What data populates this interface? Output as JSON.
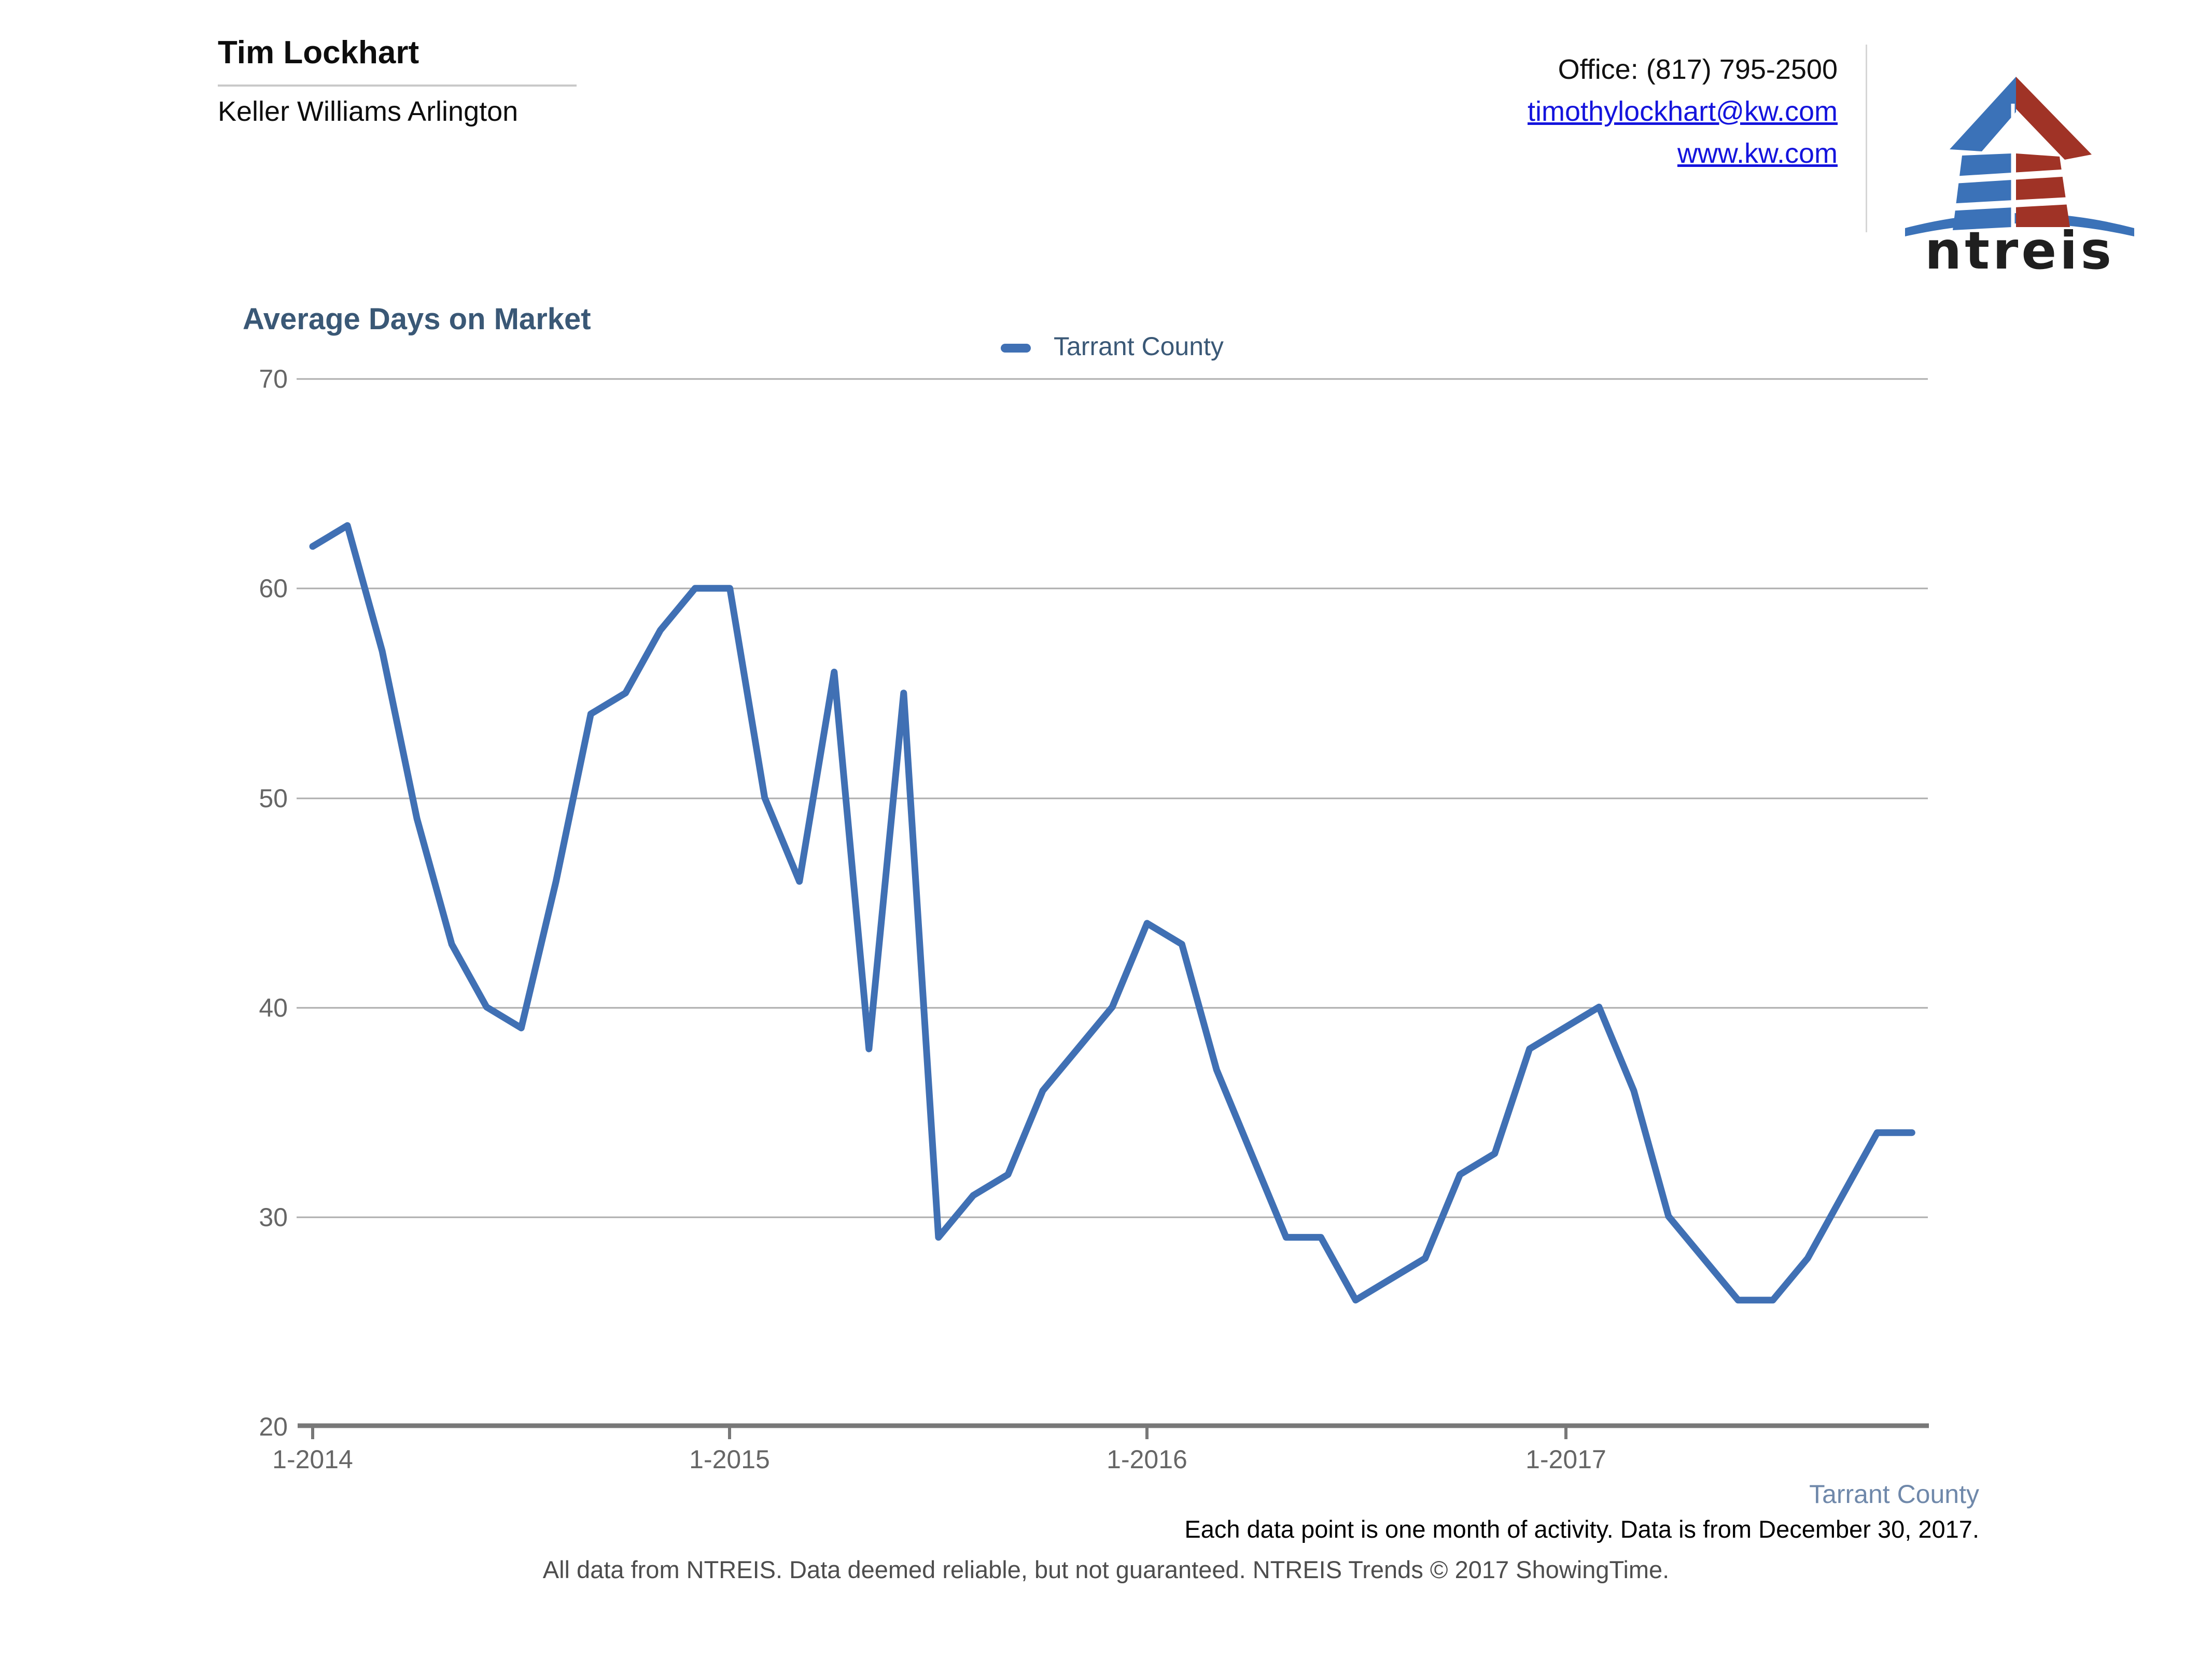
{
  "header": {
    "agent_name": "Tim Lockhart",
    "office_name": "Keller Williams Arlington",
    "phone": "Office: (817) 795-2500",
    "email": "timothylockhart@kw.com",
    "website": "www.kw.com",
    "logo_text": "ntreis"
  },
  "chart": {
    "title": "Average Days on Market",
    "legend_label": "Tarrant County",
    "y_ticks": [
      "70",
      "60",
      "50",
      "40",
      "30",
      "20"
    ],
    "x_ticks": [
      "1-2014",
      "1-2015",
      "1-2016",
      "1-2017"
    ]
  },
  "footer": {
    "series_label": "Tarrant County",
    "note": "Each data point is one month of activity. Data is from December 30, 2017.",
    "disclaimer": "All data from NTREIS. Data deemed reliable, but not guaranteed. NTREIS Trends © 2017 ShowingTime."
  },
  "colors": {
    "series_line": "#4070b4",
    "title_text": "#3a5876",
    "footer_series_label": "#6f88aa",
    "link": "#1414dd",
    "gridline": "#adadad",
    "axis": "#787878",
    "tick_label": "#666666",
    "logo_blue": "#3b72b8",
    "logo_red": "#a03326"
  },
  "chart_data": {
    "type": "line",
    "title": "Average Days on Market",
    "xlabel": "",
    "ylabel": "",
    "ylim": [
      20,
      70
    ],
    "grid": "horizontal",
    "legend_position": "top-center",
    "x": [
      "1-2014",
      "2-2014",
      "3-2014",
      "4-2014",
      "5-2014",
      "6-2014",
      "7-2014",
      "8-2014",
      "9-2014",
      "10-2014",
      "11-2014",
      "12-2014",
      "1-2015",
      "2-2015",
      "3-2015",
      "4-2015",
      "5-2015",
      "6-2015",
      "7-2015",
      "8-2015",
      "9-2015",
      "10-2015",
      "11-2015",
      "12-2015",
      "1-2016",
      "2-2016",
      "3-2016",
      "4-2016",
      "5-2016",
      "6-2016",
      "7-2016",
      "8-2016",
      "9-2016",
      "10-2016",
      "11-2016",
      "12-2016",
      "1-2017",
      "2-2017",
      "3-2017",
      "4-2017",
      "5-2017",
      "6-2017",
      "7-2017",
      "8-2017",
      "9-2017",
      "10-2017",
      "11-2017"
    ],
    "series": [
      {
        "name": "Tarrant County",
        "values": [
          62,
          63,
          57,
          49,
          43,
          40,
          39,
          46,
          54,
          55,
          58,
          60,
          60,
          50,
          46,
          56,
          38,
          55,
          29,
          31,
          32,
          36,
          38,
          40,
          44,
          43,
          37,
          33,
          29,
          29,
          26,
          27,
          28,
          32,
          33,
          38,
          39,
          40,
          36,
          30,
          28,
          26,
          26,
          28,
          31,
          34,
          34
        ]
      }
    ]
  }
}
